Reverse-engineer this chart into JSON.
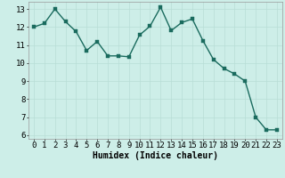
{
  "x": [
    0,
    1,
    2,
    3,
    4,
    5,
    6,
    7,
    8,
    9,
    10,
    11,
    12,
    13,
    14,
    15,
    16,
    17,
    18,
    19,
    20,
    21,
    22,
    23
  ],
  "y": [
    12.0,
    12.2,
    13.0,
    12.3,
    11.75,
    10.7,
    11.2,
    10.4,
    10.4,
    10.35,
    11.55,
    12.05,
    13.1,
    11.8,
    12.25,
    12.45,
    11.25,
    10.2,
    9.7,
    9.4,
    9.0,
    7.0,
    6.3,
    6.3
  ],
  "line_color": "#1a6b5e",
  "marker_color": "#1a6b5e",
  "bg_color": "#cdeee8",
  "grid_color": "#b8ddd6",
  "xlabel": "Humidex (Indice chaleur)",
  "ylim": [
    5.8,
    13.4
  ],
  "xlim": [
    -0.5,
    23.5
  ],
  "yticks": [
    6,
    7,
    8,
    9,
    10,
    11,
    12,
    13
  ],
  "xticks": [
    0,
    1,
    2,
    3,
    4,
    5,
    6,
    7,
    8,
    9,
    10,
    11,
    12,
    13,
    14,
    15,
    16,
    17,
    18,
    19,
    20,
    21,
    22,
    23
  ],
  "xlabel_fontsize": 7,
  "tick_fontsize": 6.5,
  "line_width": 1.0,
  "marker_size": 2.5
}
